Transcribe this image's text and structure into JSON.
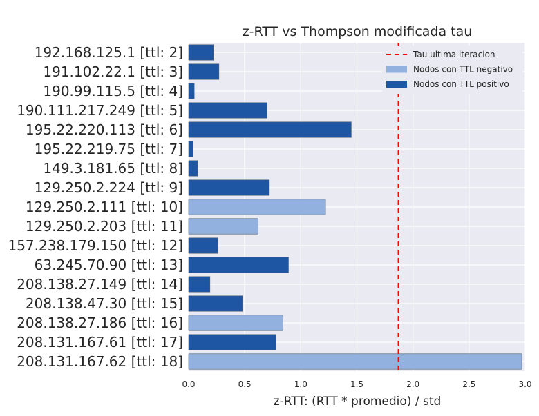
{
  "chart_data": {
    "type": "bar",
    "orientation": "horizontal",
    "title": "z-RTT vs Thompson modificada tau",
    "xlabel": "z-RTT: (RTT * promedio) / std",
    "ylabel": "",
    "xlim": [
      0,
      3.0
    ],
    "xticks": [
      "0.0",
      "0.5",
      "1.0",
      "1.5",
      "2.0",
      "2.5",
      "3.0"
    ],
    "grid": true,
    "legend_position": "top-right",
    "colors": {
      "positive": "#1f56a3",
      "negative": "#92b1de",
      "tau_line": "#ff0000",
      "background": "#eaeaf2",
      "grid": "#ffffff"
    },
    "categories": [
      "192.168.125.1 [ttl: 2]",
      "191.102.22.1 [ttl: 3]",
      "190.99.115.5 [ttl: 4]",
      "190.111.217.249 [ttl: 5]",
      "195.22.220.113 [ttl: 6]",
      "195.22.219.75 [ttl: 7]",
      "149.3.181.65 [ttl: 8]",
      "129.250.2.224 [ttl: 9]",
      "129.250.2.111 [ttl: 10]",
      "129.250.2.203 [ttl: 11]",
      "157.238.179.150 [ttl: 12]",
      "63.245.70.90 [ttl: 13]",
      "208.138.27.149 [ttl: 14]",
      "208.138.47.30 [ttl: 15]",
      "208.138.27.186 [ttl: 16]",
      "208.131.167.61 [ttl: 17]",
      "208.131.167.62 [ttl: 18]"
    ],
    "values": [
      0.22,
      0.27,
      0.05,
      0.7,
      1.45,
      0.04,
      0.08,
      0.72,
      1.22,
      0.62,
      0.26,
      0.89,
      0.19,
      0.48,
      0.84,
      0.78,
      2.97
    ],
    "series_type": [
      "positive",
      "positive",
      "positive",
      "positive",
      "positive",
      "positive",
      "positive",
      "positive",
      "negative",
      "negative",
      "positive",
      "positive",
      "positive",
      "positive",
      "negative",
      "positive",
      "negative"
    ],
    "tau": 1.87,
    "legend": [
      {
        "label": "Tau ultima iteracion",
        "kind": "line",
        "color": "#ff0000"
      },
      {
        "label": "Nodos con TTL negativo",
        "kind": "patch",
        "color": "#92b1de"
      },
      {
        "label": "Nodos con TTL positivo",
        "kind": "patch",
        "color": "#1f56a3"
      }
    ]
  }
}
